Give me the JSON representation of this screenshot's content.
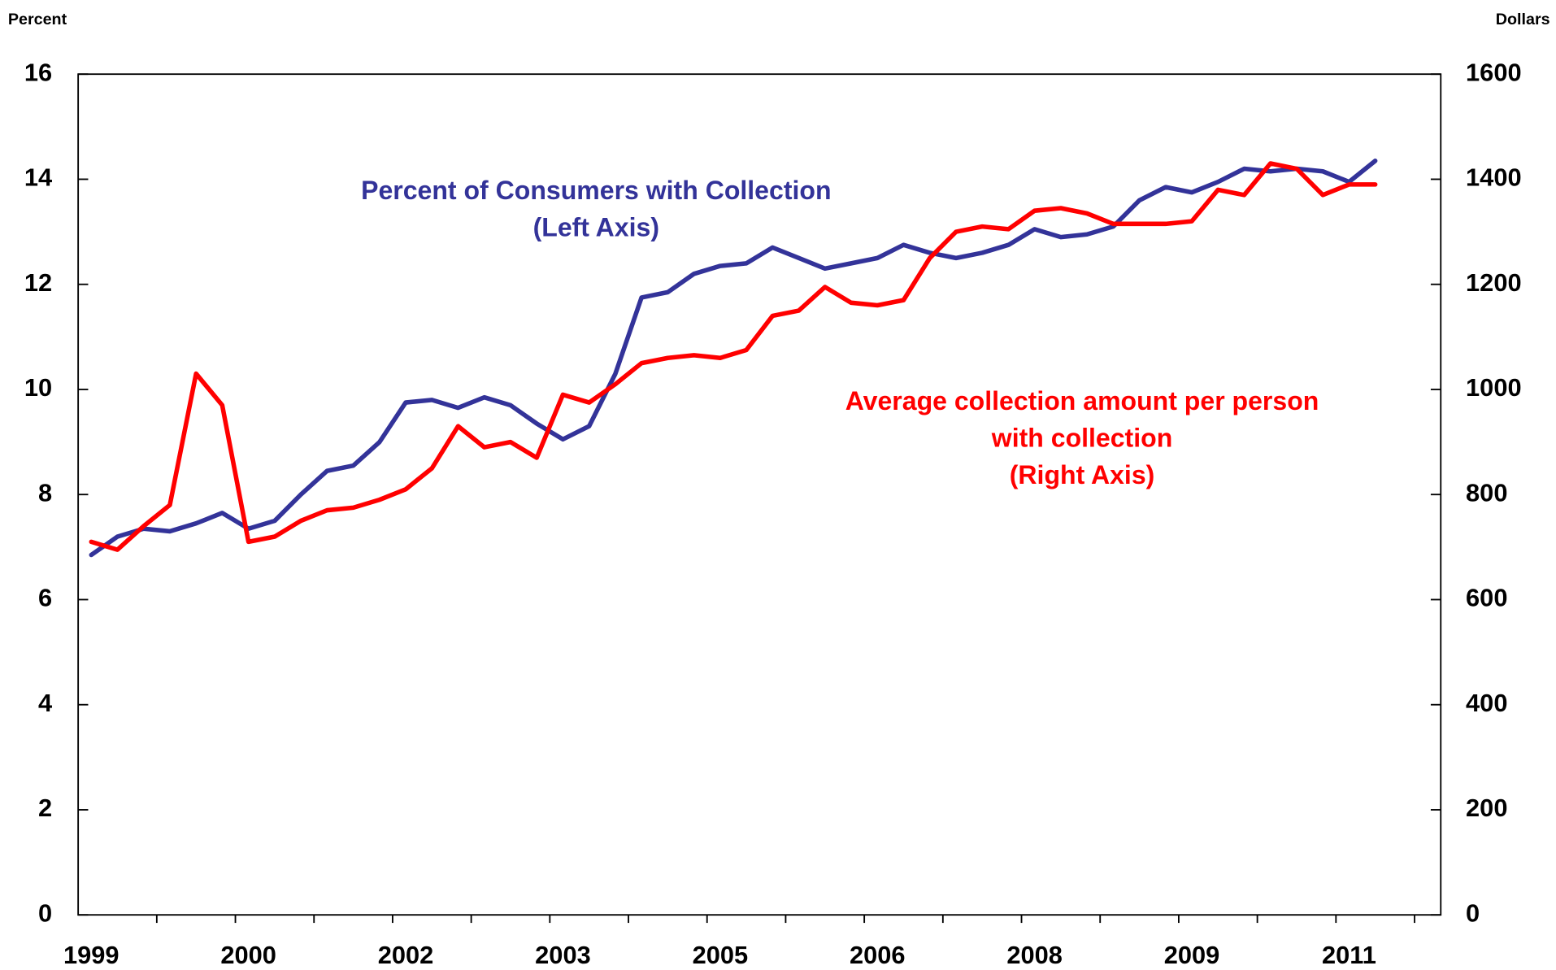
{
  "chart_data": {
    "type": "line",
    "y_axis_label": "Percent",
    "y2_axis_label": "Dollars",
    "categories": [
      "1999",
      null,
      null,
      null,
      null,
      null,
      "2000",
      null,
      null,
      null,
      null,
      null,
      "2002",
      null,
      null,
      null,
      null,
      null,
      "2003",
      null,
      null,
      null,
      null,
      null,
      "2005",
      null,
      null,
      null,
      null,
      null,
      "2006",
      null,
      null,
      null,
      null,
      null,
      "2008",
      null,
      null,
      null,
      null,
      null,
      "2009",
      null,
      null,
      null,
      null,
      null,
      "2011",
      null,
      null,
      null
    ],
    "series": [
      {
        "name": "Percent of Consumers with Collection (Left Axis)",
        "color": "#333399",
        "axis": "y",
        "values": [
          6.85,
          7.2,
          7.35,
          7.3,
          7.45,
          7.65,
          7.35,
          7.5,
          8.0,
          8.45,
          8.55,
          9.0,
          9.75,
          9.8,
          9.65,
          9.85,
          9.7,
          9.35,
          9.05,
          9.3,
          10.3,
          11.75,
          11.85,
          12.2,
          12.35,
          12.4,
          12.7,
          12.5,
          12.3,
          12.4,
          12.5,
          12.75,
          12.6,
          12.5,
          12.6,
          12.75,
          13.05,
          12.9,
          12.95,
          13.1,
          13.6,
          13.85,
          13.75,
          13.95,
          14.2,
          14.15,
          14.2,
          14.15,
          13.95,
          14.35,
          null,
          null
        ]
      },
      {
        "name": "Average collection amount per person with collection (Right Axis)",
        "color": "#ff0000",
        "axis": "y2",
        "values": [
          710,
          695,
          740,
          780,
          1030,
          970,
          710,
          720,
          750,
          770,
          775,
          790,
          810,
          850,
          930,
          890,
          900,
          870,
          990,
          975,
          1010,
          1050,
          1060,
          1065,
          1060,
          1075,
          1140,
          1150,
          1195,
          1165,
          1160,
          1170,
          1250,
          1300,
          1310,
          1305,
          1340,
          1345,
          1335,
          1315,
          1315,
          1315,
          1320,
          1380,
          1370,
          1430,
          1420,
          1370,
          1390,
          1390,
          null,
          null
        ]
      }
    ],
    "annotations": [
      {
        "lines": [
          "Percent of Consumers with Collection",
          "(Left Axis)"
        ],
        "color": "#333399"
      },
      {
        "lines": [
          "Average collection amount per person",
          "with collection",
          "(Right Axis)"
        ],
        "color": "#ff0000"
      }
    ],
    "ylim": [
      0,
      16
    ],
    "yticks": [
      0,
      2,
      4,
      6,
      8,
      10,
      12,
      14,
      16
    ],
    "y2lim": [
      0,
      1600
    ],
    "y2ticks": [
      0,
      200,
      400,
      600,
      800,
      1000,
      1200,
      1400,
      1600
    ],
    "grid": false
  }
}
